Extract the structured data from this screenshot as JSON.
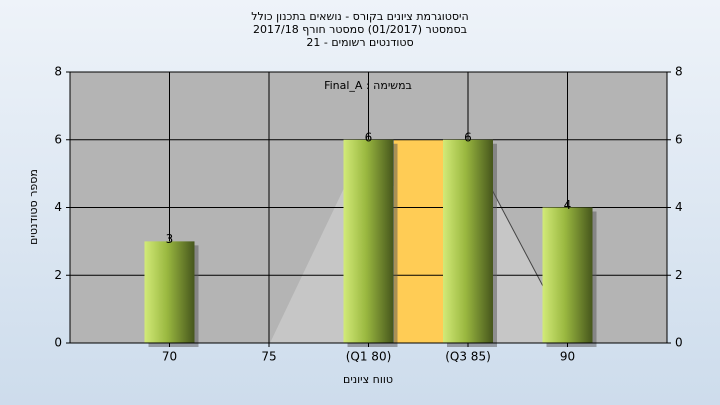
{
  "chart_data": {
    "type": "bar",
    "title": [
      "היסטוגרמת ציונים בקורס - נושאים בתכנון כולל",
      "בסמסטר  (01/2017)  סמסטר חורף  2017/18",
      "סטודנטים רשומים - 21"
    ],
    "annotation": "Final_A : במשימה",
    "x_label": "טווח ציונים",
    "y_label": "מספר סטודנטים",
    "categories": [
      "70",
      "75",
      "(Q1 80)",
      "(Q3 85)",
      "90"
    ],
    "values": [
      3,
      0,
      6,
      6,
      4
    ],
    "value_labels": [
      "3",
      null,
      "6",
      "6",
      "4"
    ],
    "color": "#9ab840",
    "ylim": [
      0,
      8
    ],
    "yticks": [
      0,
      2,
      4,
      6,
      8
    ],
    "y2lim": [
      0,
      8
    ],
    "y2ticks": [
      0,
      2,
      4,
      6,
      8
    ],
    "grid": true
  }
}
